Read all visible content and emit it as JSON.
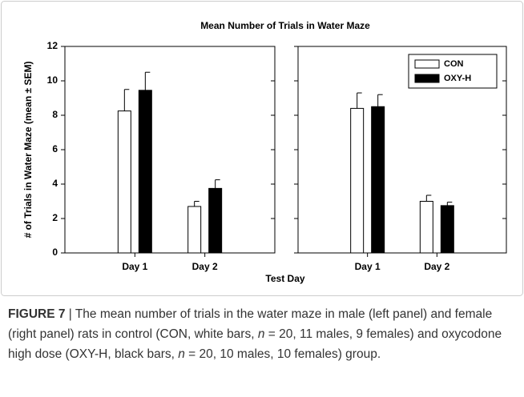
{
  "chart_data": [
    {
      "type": "bar",
      "title": "Mean Number of Trials in Water Maze",
      "ylabel": "# of Trials in Water Maze (mean ± SEM)",
      "xlabel": "Test Day",
      "categories": [
        "Day 1",
        "Day 2"
      ],
      "series": [
        {
          "name": "CON",
          "color": "#ffffff",
          "values": [
            8.25,
            2.7
          ],
          "errors": [
            1.25,
            0.3
          ]
        },
        {
          "name": "OXY-H",
          "color": "#000000",
          "values": [
            9.45,
            3.75
          ],
          "errors": [
            1.05,
            0.5
          ]
        }
      ],
      "ylim": [
        0,
        12
      ],
      "yticks": [
        0,
        2,
        4,
        6,
        8,
        10,
        12
      ]
    },
    {
      "type": "bar",
      "categories": [
        "Day 1",
        "Day 2"
      ],
      "series": [
        {
          "name": "CON",
          "color": "#ffffff",
          "values": [
            8.4,
            3.0
          ],
          "errors": [
            0.9,
            0.35
          ]
        },
        {
          "name": "OXY-H",
          "color": "#000000",
          "values": [
            8.5,
            2.75
          ],
          "errors": [
            0.7,
            0.2
          ]
        }
      ],
      "ylim": [
        0,
        12
      ],
      "yticks": [
        0,
        2,
        4,
        6,
        8,
        10,
        12
      ],
      "ytick_labels": false,
      "legend": "upper right"
    }
  ],
  "caption": [
    "FIGURE 7",
    " | The mean number of trials in the water maze in male (left panel) and female (right panel) rats in control (CON, white bars, ",
    "n",
    " = 20, 11 males, 9 females) and oxycodone high dose (OXY-H, black bars, ",
    "n",
    " = 20, 10 males, 10 females) group."
  ]
}
